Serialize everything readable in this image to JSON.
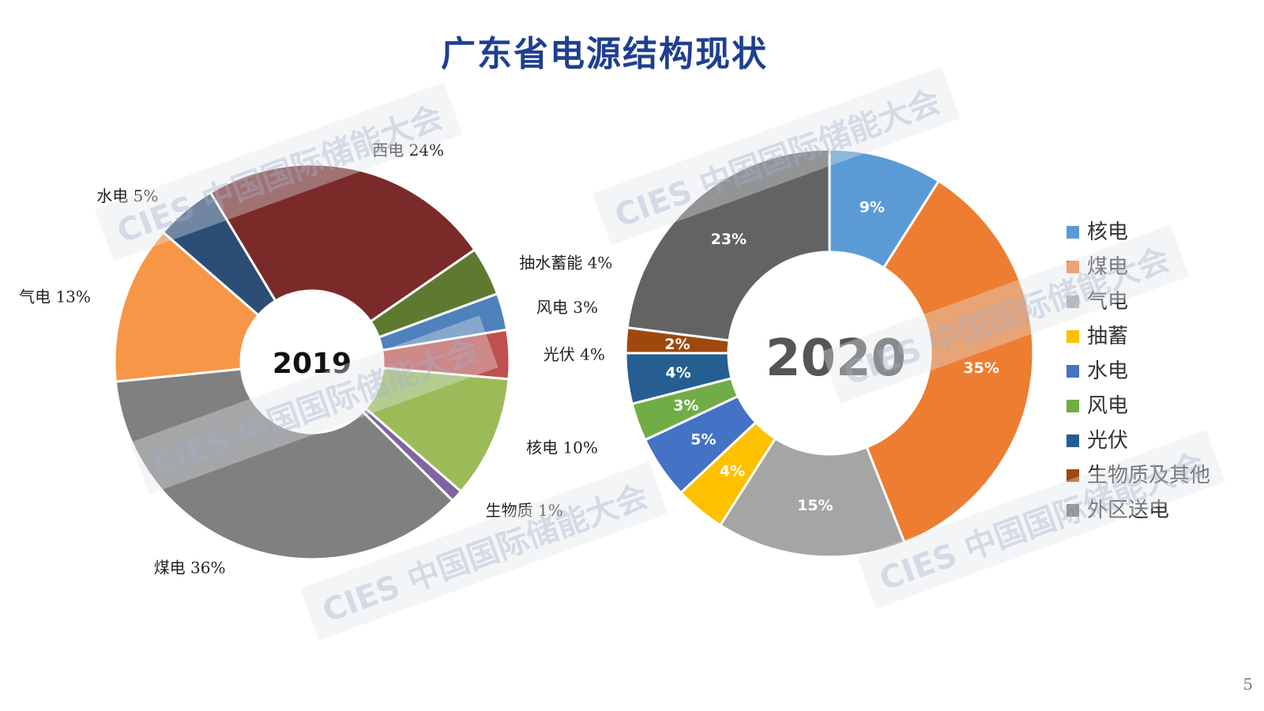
{
  "title": "广东省电源结构现状",
  "page_number": "5",
  "watermark": "CIES 中国国际储能大会",
  "chart_data": [
    {
      "type": "pie",
      "center_label": "2019",
      "slices": [
        {
          "name": "西电",
          "value": 24,
          "label": "西电 24%",
          "color": "#7b2a2a"
        },
        {
          "name": "抽水蓄能",
          "value": 4,
          "label": "抽水蓄能 4%",
          "color": "#5e7a30"
        },
        {
          "name": "风电",
          "value": 3,
          "label": "风电 3%",
          "color": "#4f81bd"
        },
        {
          "name": "光伏",
          "value": 4,
          "label": "光伏 4%",
          "color": "#c0504d"
        },
        {
          "name": "核电",
          "value": 10,
          "label": "核电 10%",
          "color": "#9bbb59"
        },
        {
          "name": "生物质",
          "value": 1,
          "label": "生物质 1%",
          "color": "#8064a2"
        },
        {
          "name": "煤电",
          "value": 36,
          "label": "煤电 36%",
          "color": "#808080"
        },
        {
          "name": "气电",
          "value": 13,
          "label": "气电 13%",
          "color": "#f79646"
        },
        {
          "name": "水电",
          "value": 5,
          "label": "水电 5%",
          "color": "#2c4d75"
        }
      ]
    },
    {
      "type": "pie",
      "center_label": "2020",
      "slices": [
        {
          "name": "核电",
          "value": 9,
          "label": "9%",
          "color": "#5b9bd5"
        },
        {
          "name": "煤电",
          "value": 35,
          "label": "35%",
          "color": "#ed7d31"
        },
        {
          "name": "气电",
          "value": 15,
          "label": "15%",
          "color": "#a5a5a5"
        },
        {
          "name": "抽蓄",
          "value": 4,
          "label": "4%",
          "color": "#ffc000"
        },
        {
          "name": "水电",
          "value": 5,
          "label": "5%",
          "color": "#4472c4"
        },
        {
          "name": "风电",
          "value": 3,
          "label": "3%",
          "color": "#70ad47"
        },
        {
          "name": "光伏",
          "value": 4,
          "label": "4%",
          "color": "#255e91"
        },
        {
          "name": "生物质及其他",
          "value": 2,
          "label": "2%",
          "color": "#9e480e"
        },
        {
          "name": "外区送电",
          "value": 23,
          "label": "23%",
          "color": "#636363"
        }
      ],
      "legend": [
        "核电",
        "煤电",
        "气电",
        "抽蓄",
        "水电",
        "风电",
        "光伏",
        "生物质及其他",
        "外区送电"
      ],
      "legend_position": "right"
    }
  ]
}
